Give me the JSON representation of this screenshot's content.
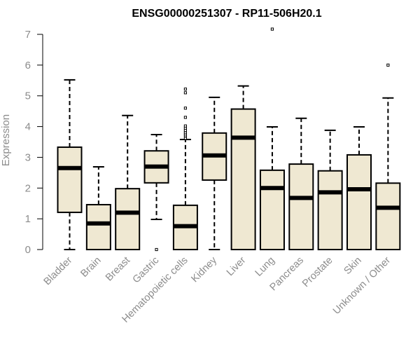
{
  "chart_data": {
    "type": "boxplot",
    "title": "ENSG00000251307 - RP11-506H20.1",
    "xlabel": "",
    "ylabel": "Expression",
    "ylim": [
      0,
      7
    ],
    "yticks": [
      0,
      1,
      2,
      3,
      4,
      5,
      6,
      7
    ],
    "box_fill": "#efe8d2",
    "line_color": "#000000",
    "axis_text_color": "#8c8c8c",
    "grid": false,
    "categories": [
      "Bladder",
      "Brain",
      "Breast",
      "Gastric",
      "Hematopoietic cells",
      "Kidney",
      "Liver",
      "Lung",
      "Pancreas",
      "Prostate",
      "Skin",
      "Unknown / Other"
    ],
    "boxes": [
      {
        "whisker_low": 0.0,
        "q1": 1.21,
        "median": 2.65,
        "q3": 3.33,
        "whisker_high": 5.52,
        "outliers": []
      },
      {
        "whisker_low": 0.0,
        "q1": 0.0,
        "median": 0.85,
        "q3": 1.46,
        "whisker_high": 2.69,
        "outliers": []
      },
      {
        "whisker_low": 0.0,
        "q1": 0.0,
        "median": 1.2,
        "q3": 1.98,
        "whisker_high": 4.36,
        "outliers": []
      },
      {
        "whisker_low": 0.98,
        "q1": 2.17,
        "median": 2.7,
        "q3": 3.21,
        "whisker_high": 3.74,
        "outliers": [
          0.0
        ]
      },
      {
        "whisker_low": 0.0,
        "q1": 0.0,
        "median": 0.76,
        "q3": 1.44,
        "whisker_high": 3.58,
        "outliers": [
          3.62,
          3.7,
          3.76,
          3.82,
          3.88,
          3.95,
          4.02,
          4.3,
          4.6,
          5.1,
          5.22
        ]
      },
      {
        "whisker_low": 0.0,
        "q1": 2.26,
        "median": 3.06,
        "q3": 3.79,
        "whisker_high": 4.95,
        "outliers": []
      },
      {
        "whisker_low": 0.0,
        "q1": 0.0,
        "median": 3.64,
        "q3": 4.57,
        "whisker_high": 5.32,
        "outliers": []
      },
      {
        "whisker_low": 0.0,
        "q1": 0.0,
        "median": 2.0,
        "q3": 2.58,
        "whisker_high": 3.99,
        "outliers": [
          7.17
        ]
      },
      {
        "whisker_low": 0.0,
        "q1": 0.0,
        "median": 1.68,
        "q3": 2.78,
        "whisker_high": 4.27,
        "outliers": []
      },
      {
        "whisker_low": 0.0,
        "q1": 0.0,
        "median": 1.86,
        "q3": 2.56,
        "whisker_high": 3.88,
        "outliers": []
      },
      {
        "whisker_low": 0.0,
        "q1": 0.0,
        "median": 1.96,
        "q3": 3.08,
        "whisker_high": 3.99,
        "outliers": []
      },
      {
        "whisker_low": 0.0,
        "q1": 0.0,
        "median": 1.36,
        "q3": 2.16,
        "whisker_high": 4.93,
        "outliers": [
          6.0
        ]
      }
    ]
  }
}
